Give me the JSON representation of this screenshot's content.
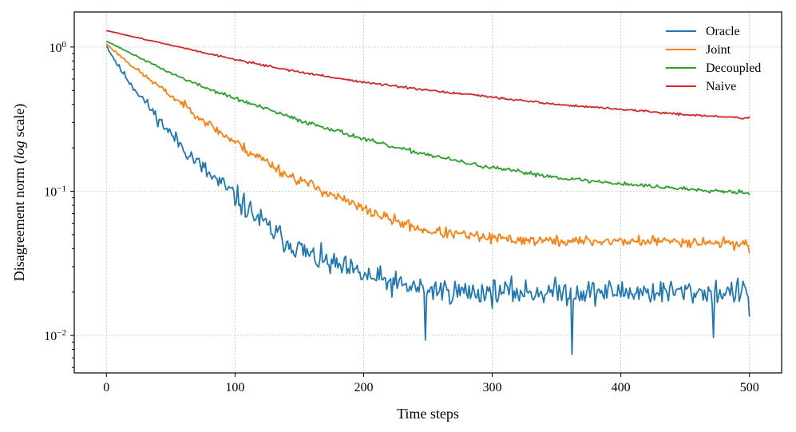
{
  "chart_data": {
    "type": "line",
    "title": "",
    "xlabel": "Time steps",
    "ylabel": "Disagreement norm ({log} scale)",
    "ylabel_parts": {
      "before": "Disagreement norm (",
      "italic": "log",
      "after": " scale)"
    },
    "yscale": "log",
    "xlim": [
      -25,
      525
    ],
    "ylim": [
      0.0055,
      1.75
    ],
    "x_ticks": [
      0,
      100,
      200,
      300,
      400,
      500
    ],
    "x_tick_labels": [
      "0",
      "100",
      "200",
      "300",
      "400",
      "500"
    ],
    "y_ticks": [
      {
        "value": 1,
        "base": "10",
        "exp": "0"
      },
      {
        "value": 0.1,
        "base": "10",
        "exp": "−1"
      },
      {
        "value": 0.01,
        "base": "10",
        "exp": "−2"
      }
    ],
    "grid": true,
    "legend_position": "top-right",
    "series": [
      {
        "name": "Oracle",
        "color": "#1f77b4",
        "x": [
          0,
          10,
          20,
          30,
          40,
          50,
          60,
          70,
          80,
          90,
          100,
          110,
          120,
          130,
          140,
          150,
          160,
          175,
          190,
          200,
          215,
          230,
          250,
          275,
          300,
          325,
          350,
          375,
          400,
          425,
          450,
          475,
          500
        ],
        "values": [
          1.02,
          0.72,
          0.54,
          0.42,
          0.32,
          0.25,
          0.2,
          0.16,
          0.13,
          0.11,
          0.092,
          0.075,
          0.062,
          0.052,
          0.045,
          0.04,
          0.035,
          0.031,
          0.028,
          0.026,
          0.024,
          0.022,
          0.021,
          0.02,
          0.02,
          0.02,
          0.02,
          0.02,
          0.02,
          0.02,
          0.02,
          0.02,
          0.02
        ],
        "noise": 0.3,
        "seed": 11,
        "spikes_low": [
          [
            248,
            0.0093
          ],
          [
            362,
            0.0074
          ],
          [
            472,
            0.0097
          ]
        ],
        "end_value": 0.0135
      },
      {
        "name": "Joint",
        "color": "#ff7f0e",
        "x": [
          0,
          10,
          20,
          30,
          40,
          50,
          60,
          70,
          80,
          90,
          100,
          110,
          120,
          130,
          140,
          150,
          175,
          200,
          225,
          250,
          275,
          300,
          350,
          400,
          450,
          500
        ],
        "values": [
          1.05,
          0.88,
          0.74,
          0.63,
          0.54,
          0.46,
          0.4,
          0.34,
          0.29,
          0.25,
          0.22,
          0.19,
          0.17,
          0.15,
          0.13,
          0.12,
          0.095,
          0.075,
          0.062,
          0.053,
          0.05,
          0.047,
          0.045,
          0.045,
          0.045,
          0.043
        ],
        "noise": 0.13,
        "seed": 23,
        "end_value": 0.037
      },
      {
        "name": "Decoupled",
        "color": "#2ca02c",
        "x": [
          0,
          25,
          50,
          75,
          100,
          125,
          150,
          175,
          200,
          225,
          250,
          275,
          300,
          325,
          350,
          375,
          400,
          425,
          450,
          475,
          500
        ],
        "values": [
          1.1,
          0.85,
          0.66,
          0.53,
          0.44,
          0.37,
          0.31,
          0.27,
          0.23,
          0.2,
          0.18,
          0.16,
          0.145,
          0.135,
          0.125,
          0.118,
          0.113,
          0.108,
          0.104,
          0.101,
          0.098
        ],
        "noise": 0.05,
        "seed": 37,
        "end_value": 0.094
      },
      {
        "name": "Naive",
        "color": "#d62728",
        "x": [
          0,
          50,
          100,
          150,
          200,
          250,
          300,
          350,
          400,
          450,
          500
        ],
        "values": [
          1.3,
          1.03,
          0.82,
          0.67,
          0.57,
          0.5,
          0.45,
          0.4,
          0.37,
          0.34,
          0.32
        ],
        "noise": 0.025,
        "seed": 51,
        "end_value": 0.33
      }
    ]
  }
}
